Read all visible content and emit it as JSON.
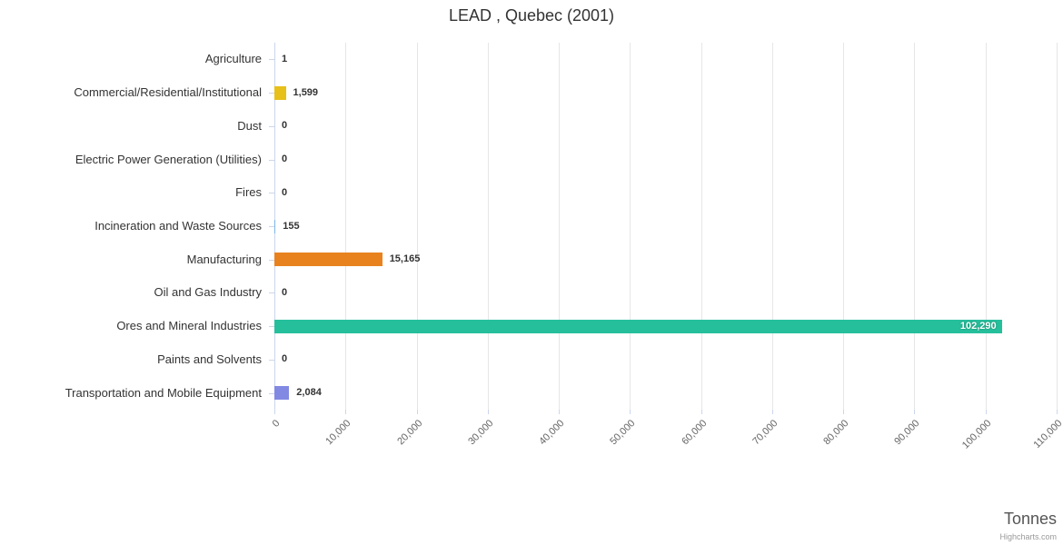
{
  "credit": "Highcharts.com",
  "chart_data": {
    "type": "bar",
    "orientation": "horizontal",
    "title": "LEAD , Quebec (2001)",
    "xlabel": "Tonnes",
    "xlim": [
      0,
      110000
    ],
    "grid": true,
    "legend": "none",
    "categories": [
      "Agriculture",
      "Commercial/Residential/Institutional",
      "Dust",
      "Electric Power Generation (Utilities)",
      "Fires",
      "Incineration and Waste Sources",
      "Manufacturing",
      "Oil and Gas Industry",
      "Ores and Mineral Industries",
      "Paints and Solvents",
      "Transportation and Mobile Equipment"
    ],
    "values": [
      1,
      1599,
      0,
      0,
      0,
      155,
      15165,
      0,
      102290,
      0,
      2084
    ],
    "value_labels": [
      "1",
      "1,599",
      "0",
      "0",
      "0",
      "155",
      "15,165",
      "0",
      "102,290",
      "0",
      "2,084"
    ],
    "colors": [
      null,
      "#e7c019",
      null,
      null,
      null,
      null,
      "#e8821f",
      null,
      "#26bf9c",
      null,
      "#8289e3"
    ],
    "default_color": "#7cb5ec",
    "label_inside": [
      false,
      false,
      false,
      false,
      false,
      false,
      false,
      false,
      true,
      false,
      false
    ],
    "x_ticks": [
      0,
      10000,
      20000,
      30000,
      40000,
      50000,
      60000,
      70000,
      80000,
      90000,
      100000,
      110000
    ],
    "x_tick_labels": [
      "0",
      "10,000",
      "20,000",
      "30,000",
      "40,000",
      "50,000",
      "60,000",
      "70,000",
      "80,000",
      "90,000",
      "100,000",
      "110,000"
    ]
  }
}
